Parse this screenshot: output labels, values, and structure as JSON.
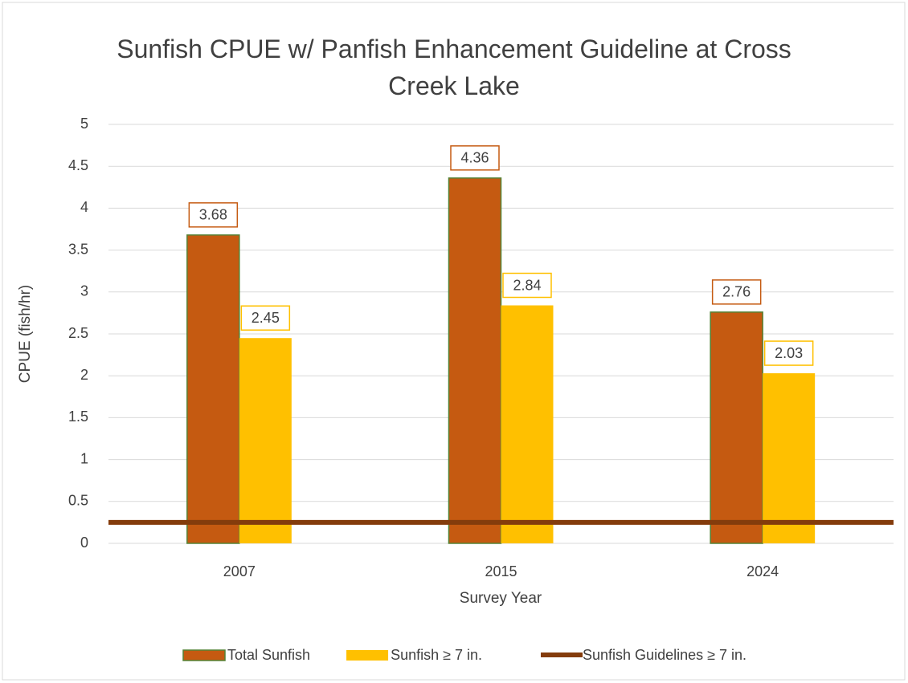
{
  "chart_data": {
    "type": "bar",
    "title": "Sunfish CPUE w/ Panfish Enhancement Guideline at Cross Creek Lake",
    "x_label": "Survey Year",
    "y_label": "CPUE (fish/hr)",
    "categories": [
      "2007",
      "2015",
      "2024"
    ],
    "series": [
      {
        "name": "Total Sunfish",
        "color": "#C55A11",
        "edge_color": "#548235",
        "values": [
          3.68,
          4.36,
          2.76
        ]
      },
      {
        "name": "Sunfish ≥ 7 in.",
        "color": "#FFC000",
        "values": [
          2.45,
          2.84,
          2.03
        ]
      }
    ],
    "reference_line": {
      "name": "Sunfish Guidelines ≥ 7 in.",
      "color": "#843C0C",
      "value": 0.25
    },
    "ylim": [
      0,
      5
    ],
    "yticks": [
      0,
      0.5,
      1,
      1.5,
      2,
      2.5,
      3,
      3.5,
      4,
      4.5,
      5
    ],
    "grid": true,
    "legend": "bottom"
  }
}
